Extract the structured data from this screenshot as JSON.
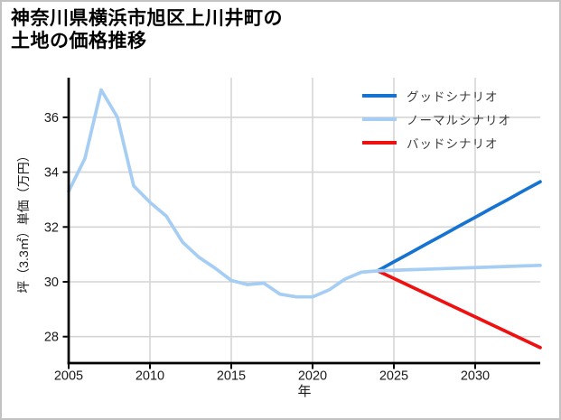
{
  "title": {
    "line1": "神奈川県横浜市旭区上川井町の",
    "line2": "土地の価格推移"
  },
  "chart_data": {
    "type": "line",
    "title": "神奈川県横浜市旭区上川井町の土地の価格推移",
    "xlabel": "年",
    "ylabel": "坪（3.3㎡）単価（万円）",
    "xlim": [
      2005,
      2034
    ],
    "ylim": [
      27.0,
      37.45
    ],
    "x_ticks": [
      2005,
      2010,
      2015,
      2020,
      2025,
      2030
    ],
    "y_ticks": [
      28,
      30,
      32,
      34,
      36
    ],
    "grid": true,
    "legend": {
      "position": "upper-right",
      "entries": [
        {
          "label": "グッドシナリオ",
          "color": "#1673d2"
        },
        {
          "label": "ノーマルシナリオ",
          "color": "#a6cdf3"
        },
        {
          "label": "バッドシナリオ",
          "color": "#ee1111"
        }
      ]
    },
    "series": [
      {
        "role": "good-scenario",
        "label": "グッドシナリオ",
        "color": "#1673d2",
        "x": [
          2024,
          2025,
          2026,
          2027,
          2028,
          2029,
          2030,
          2031,
          2032,
          2033,
          2034
        ],
        "y": [
          30.4,
          30.73,
          31.05,
          31.38,
          31.7,
          32.03,
          32.35,
          32.68,
          33.0,
          33.33,
          33.65
        ]
      },
      {
        "role": "bad-scenario",
        "label": "バッドシナリオ",
        "color": "#ee1111",
        "x": [
          2024,
          2025,
          2026,
          2027,
          2028,
          2029,
          2030,
          2031,
          2032,
          2033,
          2034
        ],
        "y": [
          30.4,
          30.12,
          29.84,
          29.56,
          29.28,
          29.0,
          28.72,
          28.44,
          28.16,
          27.88,
          27.6
        ]
      },
      {
        "role": "price-history",
        "color": "#a6cdf3",
        "x": [
          2005,
          2006,
          2007,
          2008,
          2009,
          2010,
          2011,
          2012,
          2013,
          2014,
          2015,
          2016,
          2017,
          2018,
          2019,
          2020,
          2021,
          2022,
          2023,
          2024
        ],
        "y": [
          33.3,
          34.5,
          37.0,
          36.0,
          33.5,
          32.9,
          32.4,
          31.45,
          30.9,
          30.5,
          30.05,
          29.9,
          29.95,
          29.55,
          29.45,
          29.45,
          29.7,
          30.1,
          30.35,
          30.4
        ]
      },
      {
        "role": "normal-scenario",
        "label": "ノーマルシナリオ",
        "color": "#a6cdf3",
        "x": [
          2024,
          2025,
          2026,
          2027,
          2028,
          2029,
          2030,
          2031,
          2032,
          2033,
          2034
        ],
        "y": [
          30.4,
          30.42,
          30.44,
          30.46,
          30.48,
          30.5,
          30.52,
          30.54,
          30.56,
          30.58,
          30.6
        ]
      }
    ]
  },
  "colors": {
    "grid": "#d5d5d5",
    "axis": "#000000",
    "tick_label": "#1a1a1a",
    "legend_text": "#3c3c3c",
    "title_text": "#000000",
    "frame_border": "#c2c2c2",
    "background": "#ffffff"
  }
}
